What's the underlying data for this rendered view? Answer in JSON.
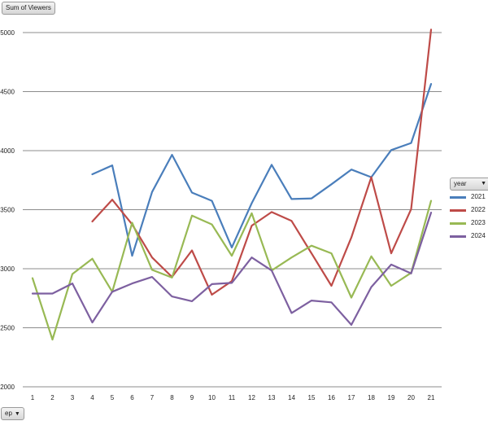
{
  "pivot": {
    "value_field": "Sum of Viewers",
    "axis_field": "ep",
    "legend_field": "year"
  },
  "chart_data": {
    "type": "line",
    "x": [
      1,
      2,
      3,
      4,
      5,
      6,
      7,
      8,
      9,
      10,
      11,
      12,
      13,
      14,
      15,
      16,
      17,
      18,
      19,
      20,
      21
    ],
    "ylim": [
      2000,
      5000
    ],
    "yticks": [
      2000,
      2500,
      3000,
      3500,
      4000,
      4500,
      5000
    ],
    "grid": true,
    "legend_position": "right",
    "series": [
      {
        "name": "2021",
        "color": "#4a7ebb",
        "values": [
          null,
          null,
          null,
          3800,
          3875,
          3110,
          3650,
          3965,
          3645,
          3575,
          3180,
          3555,
          3880,
          3590,
          3595,
          3715,
          3840,
          3775,
          4005,
          4065,
          4565
        ]
      },
      {
        "name": "2022",
        "color": "#be4b48",
        "values": [
          null,
          null,
          null,
          3400,
          3585,
          3375,
          3095,
          2930,
          3155,
          2780,
          2895,
          3365,
          3480,
          3405,
          3130,
          2855,
          3265,
          3775,
          3130,
          3505,
          5025
        ]
      },
      {
        "name": "2023",
        "color": "#98b954",
        "values": [
          2920,
          2400,
          2955,
          3085,
          2805,
          3390,
          2990,
          2925,
          3450,
          3375,
          3110,
          3470,
          2985,
          3095,
          3195,
          3130,
          2755,
          3105,
          2855,
          2965,
          3575
        ]
      },
      {
        "name": "2024",
        "color": "#7d60a0",
        "values": [
          2790,
          2790,
          2875,
          2545,
          2805,
          2875,
          2930,
          2765,
          2725,
          2870,
          2880,
          3095,
          2985,
          2625,
          2730,
          2715,
          2525,
          2845,
          3035,
          2960,
          3475
        ]
      }
    ]
  }
}
